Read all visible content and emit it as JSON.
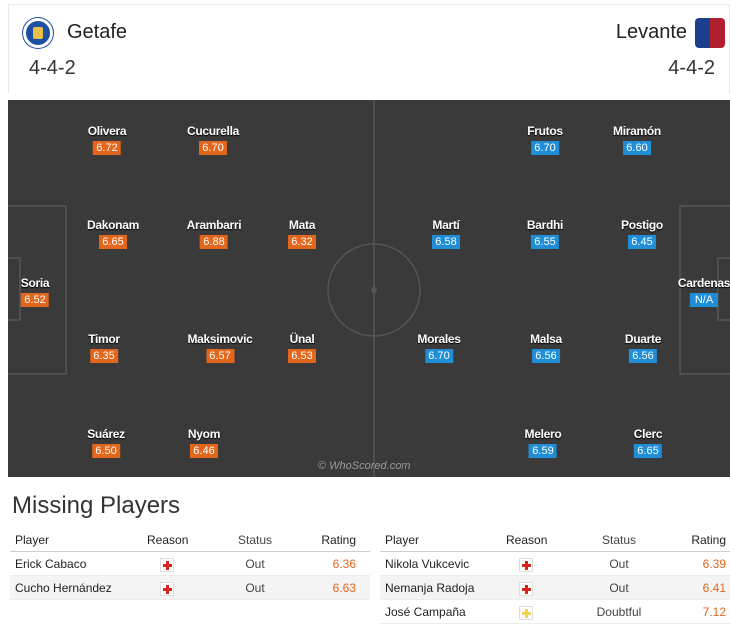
{
  "header": {
    "home": {
      "name": "Getafe",
      "formation": "4-4-2"
    },
    "away": {
      "name": "Levante",
      "formation": "4-4-2"
    }
  },
  "pitch": {
    "watermark": "© WhoScored.com",
    "home_players": [
      {
        "name": "Soria",
        "rating": "6.52"
      },
      {
        "name": "Olivera",
        "rating": "6.72"
      },
      {
        "name": "Dakonam",
        "rating": "6.65"
      },
      {
        "name": "Timor",
        "rating": "6.35"
      },
      {
        "name": "Suárez",
        "rating": "6.50"
      },
      {
        "name": "Cucurella",
        "rating": "6.70"
      },
      {
        "name": "Arambarri",
        "rating": "6.88"
      },
      {
        "name": "Maksimovic",
        "rating": "6.57"
      },
      {
        "name": "Nyom",
        "rating": "6.46"
      },
      {
        "name": "Mata",
        "rating": "6.32"
      },
      {
        "name": "Ünal",
        "rating": "6.53"
      }
    ],
    "away_players": [
      {
        "name": "Cardenas",
        "rating": "N/A"
      },
      {
        "name": "Miramón",
        "rating": "6.60"
      },
      {
        "name": "Postigo",
        "rating": "6.45"
      },
      {
        "name": "Duarte",
        "rating": "6.56"
      },
      {
        "name": "Clerc",
        "rating": "6.65"
      },
      {
        "name": "Frutos",
        "rating": "6.70"
      },
      {
        "name": "Bardhi",
        "rating": "6.55"
      },
      {
        "name": "Malsa",
        "rating": "6.56"
      },
      {
        "name": "Melero",
        "rating": "6.59"
      },
      {
        "name": "Martí",
        "rating": "6.58"
      },
      {
        "name": "Morales",
        "rating": "6.70"
      }
    ]
  },
  "missing": {
    "title": "Missing Players",
    "columns": {
      "player": "Player",
      "reason": "Reason",
      "status": "Status",
      "rating": "Rating"
    },
    "home": [
      {
        "player": "Erick Cabaco",
        "reason": "injury-icon",
        "status": "Out",
        "rating": "6.36"
      },
      {
        "player": "Cucho Hernández",
        "reason": "injury-icon",
        "status": "Out",
        "rating": "6.63"
      }
    ],
    "away": [
      {
        "player": "Nikola Vukcevic",
        "reason": "injury-icon",
        "status": "Out",
        "rating": "6.39"
      },
      {
        "player": "Nemanja Radoja",
        "reason": "injury-icon",
        "status": "Out",
        "rating": "6.41"
      },
      {
        "player": "José Campaña",
        "reason": "doubtful-icon",
        "status": "Doubtful",
        "rating": "7.12"
      }
    ]
  },
  "colors": {
    "home_rating": "#e2661c",
    "away_rating": "#1f8ed6",
    "pitch": "#3a3a3a",
    "injury": "#d9261c",
    "doubtful": "#f3d24c"
  }
}
